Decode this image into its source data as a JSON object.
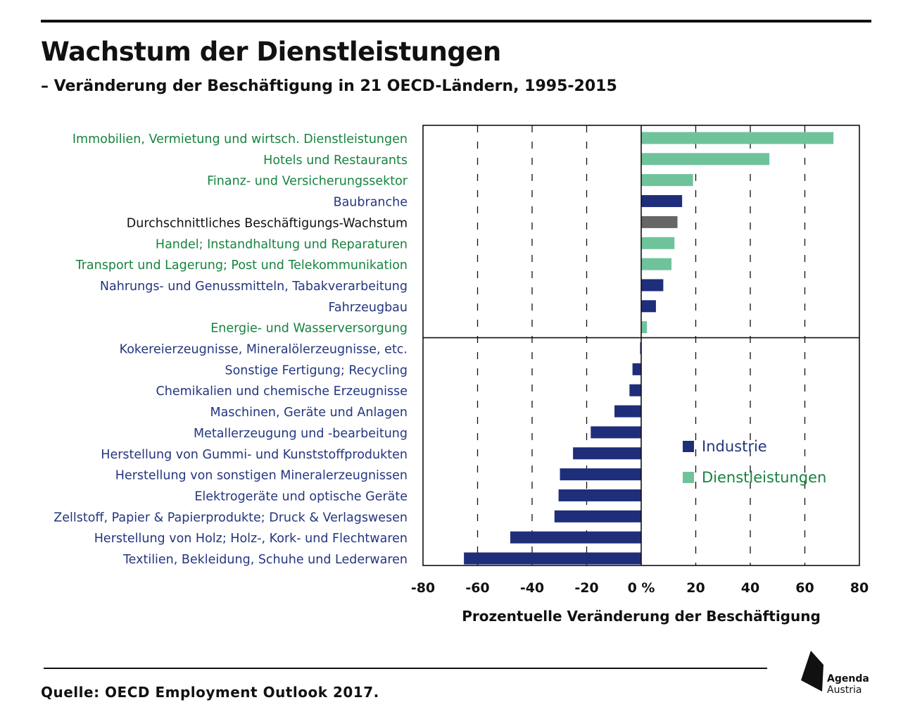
{
  "title": "Wachstum der Dienstleistungen",
  "subtitle": "– Veränderung der Beschäftigung in 21 OECD-Ländern, 1995-2015",
  "source": "Quelle: OECD Employment Outlook 2017.",
  "logo": {
    "line1": "Agenda",
    "line2": "Austria",
    "icon": "agenda-austria-logo-icon"
  },
  "colors": {
    "industrie": "#1f2e7a",
    "dienstleistungen": "#6fc39b",
    "average": "#666666",
    "industrie_text": "#24367f",
    "dienstleistungen_text": "#17833f",
    "average_text": "#111111"
  },
  "chart_data": {
    "type": "bar",
    "orientation": "horizontal",
    "categories": [
      "Immobilien, Vermietung und wirtsch. Dienstleistungen",
      "Hotels und Restaurants",
      "Finanz- und Versicherungssektor",
      "Baubranche",
      "Durchschnittliches Beschäftigungs-Wachstum",
      "Handel; Instandhaltung und Reparaturen",
      "Transport und Lagerung; Post und Telekommunikation",
      "Nahrungs- und Genussmitteln, Tabakverarbeitung",
      "Fahrzeugbau",
      "Energie- und Wasserversorgung",
      "Kokereierzeugnisse, Mineralölerzeugnisse, etc.",
      "Sonstige Fertigung; Recycling",
      "Chemikalien und chemische Erzeugnisse",
      "Maschinen, Geräte und Anlagen",
      "Metallerzeugung und -bearbeitung",
      "Herstellung von Gummi- und Kunststoffprodukten",
      "Herstellung von sonstigen Mineralerzeugnissen",
      "Elektrogeräte und optische Geräte",
      "Zellstoff, Papier & Papierprodukte; Druck & Verlagswesen",
      "Herstellung von Holz; Holz-, Kork- und Flechtwaren",
      "Textilien, Bekleidung, Schuhe und Lederwaren"
    ],
    "values": [
      70.5,
      47,
      19,
      15,
      13.3,
      12.2,
      11.1,
      8.1,
      5.4,
      2.1,
      -0.4,
      -3.2,
      -4.3,
      -9.8,
      -18.5,
      -25,
      -29.8,
      -30.3,
      -31.8,
      -48,
      -65
    ],
    "groups": [
      "dienstleistungen",
      "dienstleistungen",
      "dienstleistungen",
      "industrie",
      "average",
      "dienstleistungen",
      "dienstleistungen",
      "industrie",
      "industrie",
      "dienstleistungen",
      "industrie",
      "industrie",
      "industrie",
      "industrie",
      "industrie",
      "industrie",
      "industrie",
      "industrie",
      "industrie",
      "industrie",
      "industrie"
    ],
    "xlim": [
      -80,
      80
    ],
    "xticks": [
      -80,
      -60,
      -40,
      -20,
      0,
      20,
      40,
      60,
      80
    ],
    "xtick_labels": [
      "-80",
      "-60",
      "-40",
      "-20",
      "0 %",
      "20",
      "40",
      "60",
      "80"
    ],
    "xlabel": "Prozentuelle Veränderung der Beschäftigung",
    "ylabel": "",
    "grid": "vertical dashed",
    "legend": {
      "placement": "lower-right",
      "entries": [
        {
          "key": "industrie",
          "label": "Industrie"
        },
        {
          "key": "dienstleistungen",
          "label": "Dienstleistungen"
        }
      ]
    }
  }
}
